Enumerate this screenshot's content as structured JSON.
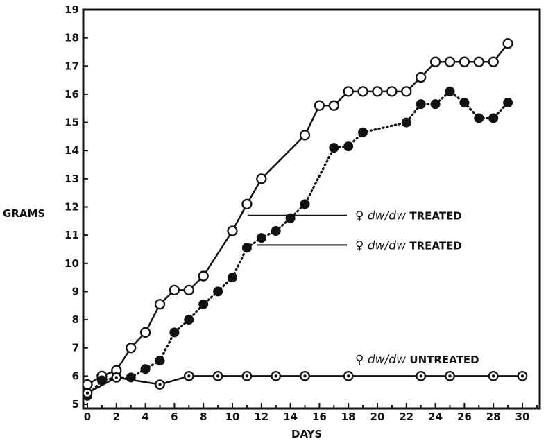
{
  "chart_data": {
    "type": "line",
    "title": "",
    "xlabel": "DAYS",
    "ylabel": "GRAMS",
    "xlim": [
      0,
      31
    ],
    "ylim": [
      5,
      19
    ],
    "x_ticks": [
      0,
      2,
      4,
      6,
      8,
      10,
      12,
      14,
      16,
      18,
      20,
      22,
      24,
      26,
      28,
      30
    ],
    "y_ticks": [
      5,
      6,
      7,
      8,
      9,
      10,
      11,
      12,
      13,
      14,
      15,
      16,
      17,
      18,
      19
    ],
    "grid": false,
    "series": [
      {
        "name": "♀ dw/dw TREATED",
        "marker": "open-circle",
        "line": "solid",
        "x": [
          0,
          1,
          2,
          3,
          4,
          5,
          6,
          7,
          8,
          10,
          11,
          12,
          15,
          16,
          17,
          18,
          19,
          20,
          21,
          22,
          23,
          24,
          25,
          26,
          27,
          28,
          29
        ],
        "y": [
          5.7,
          6.0,
          6.2,
          7.0,
          7.55,
          8.55,
          9.05,
          9.05,
          9.55,
          11.15,
          12.1,
          13.0,
          14.55,
          15.6,
          15.6,
          16.1,
          16.1,
          16.1,
          16.1,
          16.1,
          16.6,
          17.15,
          17.15,
          17.15,
          17.15,
          17.15,
          17.8
        ]
      },
      {
        "name": "♀ dw/dw TREATED",
        "marker": "filled-circle",
        "line": "dotted",
        "x": [
          0,
          1,
          2,
          3,
          4,
          5,
          6,
          7,
          8,
          9,
          10,
          11,
          12,
          13,
          14,
          15,
          17,
          18,
          19,
          22,
          23,
          24,
          25,
          26,
          27,
          28,
          29
        ],
        "y": [
          5.3,
          5.85,
          5.95,
          5.95,
          6.25,
          6.55,
          7.55,
          8.0,
          8.55,
          9.0,
          9.5,
          10.55,
          10.9,
          11.15,
          11.6,
          12.1,
          14.1,
          14.15,
          14.65,
          15.0,
          15.65,
          15.65,
          16.1,
          15.7,
          15.15,
          15.15,
          15.7
        ]
      },
      {
        "name": "♀ dw/dw UNTREATED",
        "marker": "dotted-circle",
        "line": "solid",
        "x": [
          0,
          2,
          5,
          7,
          9,
          11,
          13,
          15,
          18,
          23,
          25,
          28,
          30
        ],
        "y": [
          5.4,
          5.95,
          5.7,
          6.0,
          6.0,
          6.0,
          6.0,
          6.0,
          6.0,
          6.0,
          6.0,
          6.0,
          6.0
        ]
      }
    ],
    "legend": [
      {
        "symbol": "♀",
        "genotype": "dw/dw",
        "status": "TREATED"
      },
      {
        "symbol": "♀",
        "genotype": "dw/dw",
        "status": "TREATED"
      },
      {
        "symbol": "♀",
        "genotype": "dw/dw",
        "status": "UNTREATED"
      }
    ]
  }
}
